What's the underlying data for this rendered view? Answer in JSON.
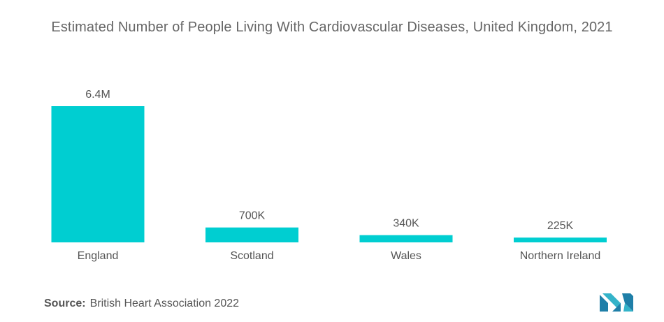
{
  "title": "Estimated Number of People Living With Cardiovascular Diseases, United Kingdom, 2021",
  "source": {
    "label": "Source:",
    "text": "British Heart Association 2022"
  },
  "colors": {
    "bar": "#00CED1",
    "text": "#555555",
    "title": "#666666"
  },
  "chart_data": {
    "type": "bar",
    "title": "Estimated Number of People Living With Cardiovascular Diseases, United Kingdom, 2021",
    "categories": [
      "England",
      "Scotland",
      "Wales",
      "Northern Ireland"
    ],
    "values": [
      6400000,
      700000,
      340000,
      225000
    ],
    "data_labels": [
      "6.4M",
      "700K",
      "340K",
      "225K"
    ],
    "xlabel": "",
    "ylabel": "",
    "ylim": [
      0,
      6400000
    ],
    "grid": false,
    "legend": "none"
  }
}
